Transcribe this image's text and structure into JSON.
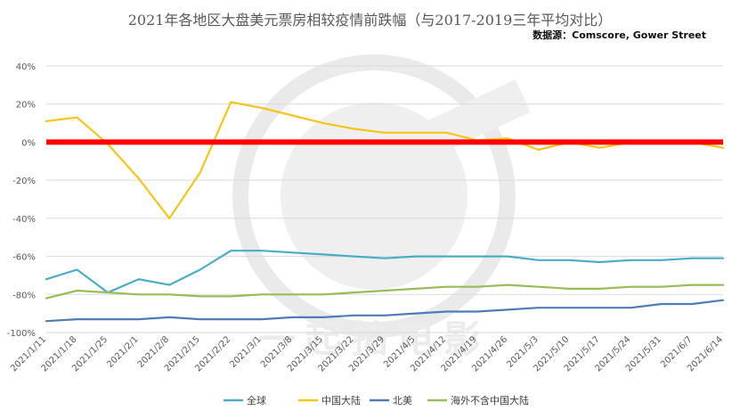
{
  "chart_data": {
    "type": "line",
    "title": "2021年各地区大盘美元票房相较疫情前跌幅（与2017-2019三年平均对比）",
    "subtitle": "数据源：Comscore, Gower Street",
    "watermark": "一起拍电影",
    "x": [
      "2021/1/11",
      "2021/1/18",
      "2021/1/25",
      "2021/2/1",
      "2021/2/8",
      "2021/2/15",
      "2021/2/22",
      "2021/3/1",
      "2021/3/8",
      "2021/3/15",
      "2021/3/22",
      "2021/3/29",
      "2021/4/5",
      "2021/4/12",
      "2021/4/19",
      "2021/4/26",
      "2021/5/3",
      "2021/5/10",
      "2021/5/17",
      "2021/5/24",
      "2021/5/31",
      "2021/6/7",
      "2021/6/14"
    ],
    "ylim": [
      -100,
      40
    ],
    "yticks": [
      "40%",
      "20%",
      "0%",
      "-20%",
      "-40%",
      "-60%",
      "-80%",
      "-100%"
    ],
    "series": [
      {
        "name": "全球",
        "color": "#4bacc6",
        "values": [
          -72,
          -67,
          -79,
          -72,
          -75,
          -67,
          -57,
          -57,
          -58,
          -59,
          -60,
          -61,
          -60,
          -60,
          -60,
          -60,
          -62,
          -62,
          -63,
          -62,
          -62,
          -61,
          -61
        ]
      },
      {
        "name": "中国大陆",
        "color": "#f5c518",
        "values": [
          11,
          13,
          -1,
          -19,
          -40,
          -16,
          21,
          18,
          14,
          10,
          7,
          5,
          5,
          5,
          1,
          2,
          -4,
          0,
          -3,
          0,
          0,
          0,
          -3
        ]
      },
      {
        "name": "北美",
        "color": "#4f7bb7",
        "values": [
          -94,
          -93,
          -93,
          -93,
          -92,
          -93,
          -93,
          -93,
          -92,
          -92,
          -91,
          -91,
          -90,
          -89,
          -89,
          -88,
          -87,
          -87,
          -87,
          -87,
          -85,
          -85,
          -83
        ]
      },
      {
        "name": "海外不含中国大陆",
        "color": "#9bbb59",
        "values": [
          -82,
          -78,
          -79,
          -80,
          -80,
          -81,
          -81,
          -80,
          -80,
          -80,
          -79,
          -78,
          -77,
          -76,
          -76,
          -75,
          -76,
          -77,
          -77,
          -76,
          -76,
          -75,
          -75
        ]
      }
    ],
    "reference_line": {
      "value": 0,
      "color": "#ff0000"
    },
    "grid": true,
    "legend_position": "bottom"
  }
}
